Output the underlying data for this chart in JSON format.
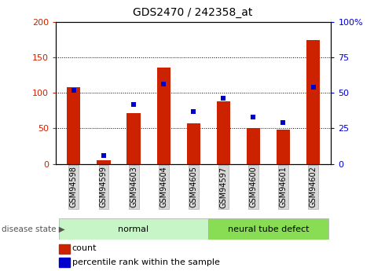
{
  "title": "GDS2470 / 242358_at",
  "samples": [
    "GSM94598",
    "GSM94599",
    "GSM94603",
    "GSM94604",
    "GSM94605",
    "GSM94597",
    "GSM94600",
    "GSM94601",
    "GSM94602"
  ],
  "counts": [
    108,
    5,
    72,
    136,
    57,
    88,
    50,
    48,
    174
  ],
  "percentiles": [
    52,
    6,
    42,
    56,
    37,
    46,
    33,
    29,
    54
  ],
  "groups": [
    {
      "label": "normal",
      "start": 0,
      "end": 5,
      "color": "#c8f5c8"
    },
    {
      "label": "neural tube defect",
      "start": 5,
      "end": 9,
      "color": "#88dd55"
    }
  ],
  "bar_color": "#cc2200",
  "dot_color": "#0000cc",
  "ylim_left": [
    0,
    200
  ],
  "ylim_right": [
    0,
    100
  ],
  "yticks_left": [
    0,
    50,
    100,
    150,
    200
  ],
  "yticks_right": [
    0,
    25,
    50,
    75,
    100
  ],
  "ytick_labels_left": [
    "0",
    "50",
    "100",
    "150",
    "200"
  ],
  "ytick_labels_right": [
    "0",
    "25",
    "50",
    "75",
    "100%"
  ],
  "legend_count_label": "count",
  "legend_pct_label": "percentile rank within the sample",
  "disease_state_label": "disease state",
  "tick_bg_color": "#d8d8d8",
  "bar_width": 0.45
}
